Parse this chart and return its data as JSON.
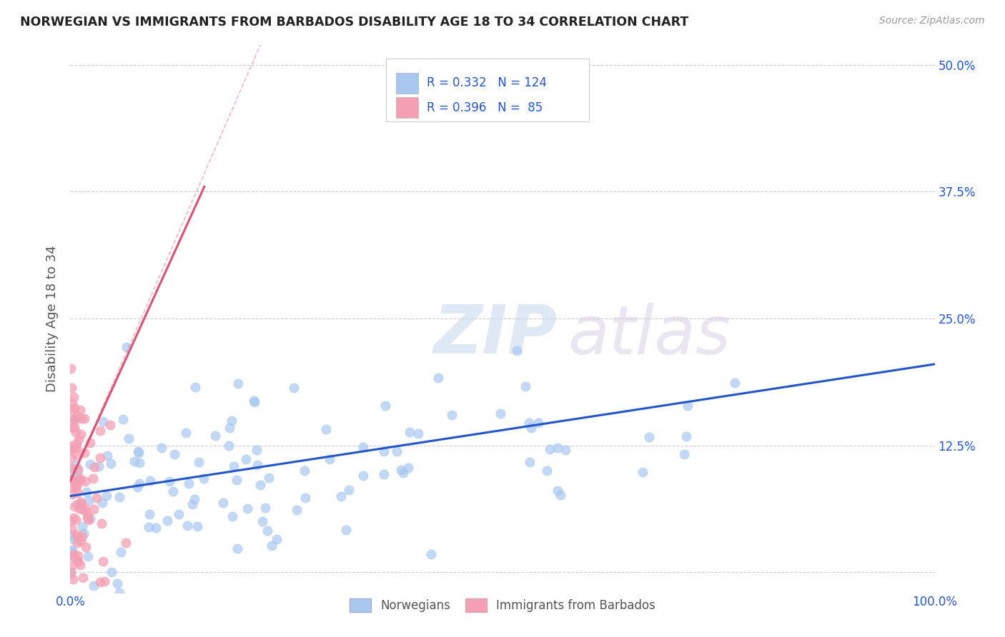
{
  "title": "NORWEGIAN VS IMMIGRANTS FROM BARBADOS DISABILITY AGE 18 TO 34 CORRELATION CHART",
  "source": "Source: ZipAtlas.com",
  "ylabel": "Disability Age 18 to 34",
  "xlim": [
    0.0,
    1.0
  ],
  "ylim": [
    -0.02,
    0.52
  ],
  "yticks": [
    0.0,
    0.125,
    0.25,
    0.375,
    0.5
  ],
  "ytick_labels": [
    "",
    "12.5%",
    "25.0%",
    "37.5%",
    "50.0%"
  ],
  "xtick_left_label": "0.0%",
  "xtick_right_label": "100.0%",
  "blue_R": 0.332,
  "blue_N": 124,
  "pink_R": 0.396,
  "pink_N": 85,
  "blue_color": "#a8c8f0",
  "pink_color": "#f4a0b4",
  "blue_line_color": "#2255cc",
  "pink_line_color": "#e05070",
  "watermark_zip": "ZIP",
  "watermark_atlas": "atlas",
  "legend_label_blue": "Norwegians",
  "legend_label_pink": "Immigrants from Barbados",
  "background_color": "#ffffff",
  "grid_color": "#cccccc",
  "blue_trend_x": [
    0.0,
    1.0
  ],
  "blue_trend_y": [
    0.075,
    0.205
  ],
  "pink_trend_x": [
    0.0,
    0.155
  ],
  "pink_trend_y": [
    0.09,
    0.38
  ]
}
